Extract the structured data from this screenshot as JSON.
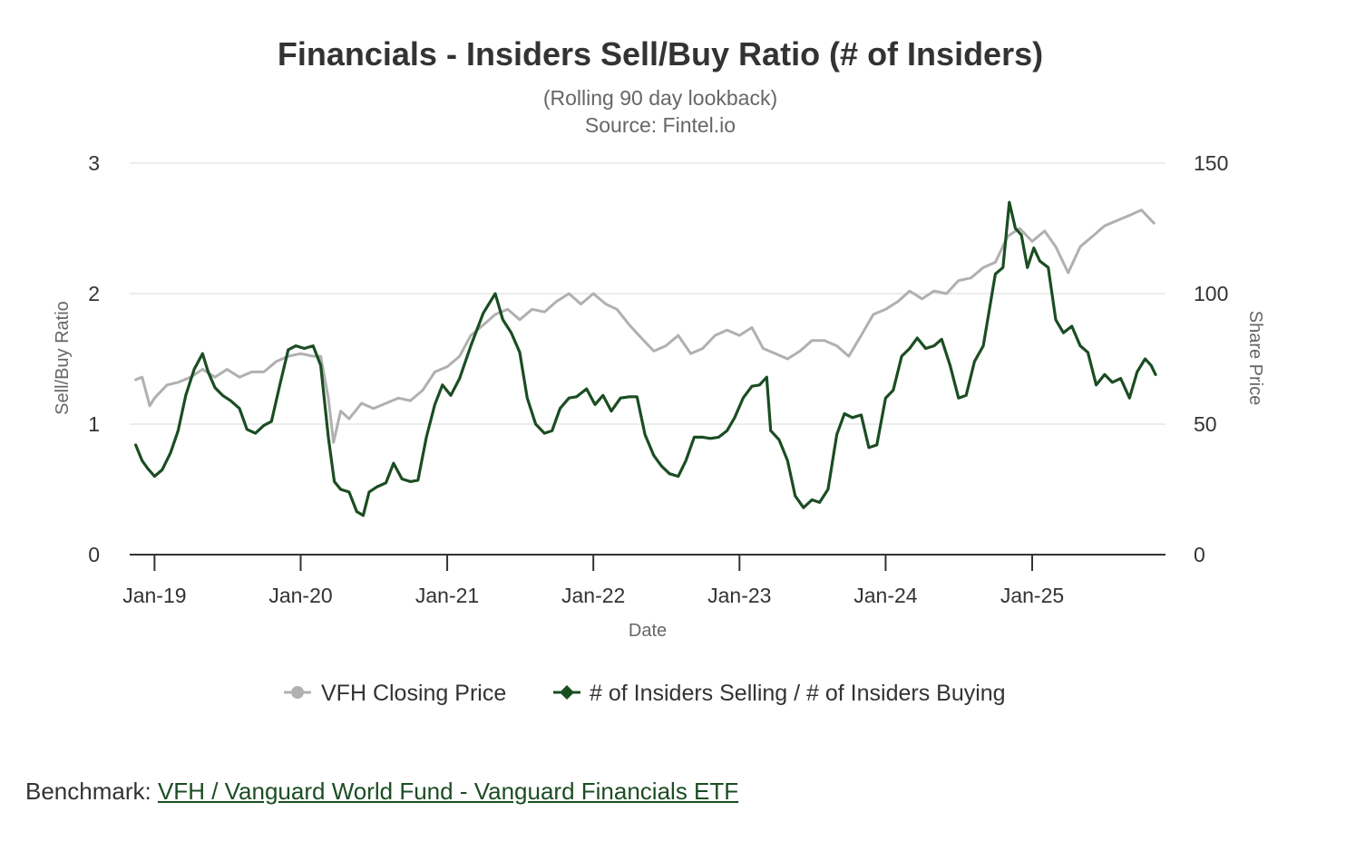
{
  "chart_data": {
    "type": "line",
    "title": "Financials - Insiders Sell/Buy Ratio (# of Insiders)",
    "subtitle": [
      "(Rolling 90 day lookback)",
      "Source: Fintel.io"
    ],
    "xlabel": "Date",
    "ylabel_left": "Sell/Buy Ratio",
    "ylabel_right": "Share Price",
    "x_ticks": [
      "Jan-19",
      "Jan-20",
      "Jan-21",
      "Jan-22",
      "Jan-23",
      "Jan-24",
      "Jan-25"
    ],
    "ylim_left": [
      0,
      3
    ],
    "yticks_left": [
      0,
      1,
      2,
      3
    ],
    "ylim_right": [
      0,
      150
    ],
    "yticks_right": [
      0,
      50,
      100,
      150
    ],
    "grid": true,
    "legend_position": "bottom",
    "series": [
      {
        "name": "VFH Closing Price",
        "axis": "right",
        "color": "#b0b0b0",
        "marker": "circle",
        "points": [
          [
            "2018-11-15",
            67
          ],
          [
            "2018-12-01",
            68
          ],
          [
            "2018-12-20",
            57
          ],
          [
            "2019-01-01",
            60
          ],
          [
            "2019-02-01",
            65
          ],
          [
            "2019-03-01",
            66
          ],
          [
            "2019-04-01",
            68
          ],
          [
            "2019-05-01",
            71
          ],
          [
            "2019-06-01",
            68
          ],
          [
            "2019-07-01",
            71
          ],
          [
            "2019-08-01",
            68
          ],
          [
            "2019-09-01",
            70
          ],
          [
            "2019-10-01",
            70
          ],
          [
            "2019-11-01",
            74
          ],
          [
            "2019-12-01",
            76
          ],
          [
            "2020-01-01",
            77
          ],
          [
            "2020-02-01",
            76
          ],
          [
            "2020-02-20",
            76
          ],
          [
            "2020-03-10",
            60
          ],
          [
            "2020-03-23",
            43
          ],
          [
            "2020-04-10",
            55
          ],
          [
            "2020-05-01",
            52
          ],
          [
            "2020-06-01",
            58
          ],
          [
            "2020-07-01",
            56
          ],
          [
            "2020-08-01",
            58
          ],
          [
            "2020-09-01",
            60
          ],
          [
            "2020-10-01",
            59
          ],
          [
            "2020-11-01",
            63
          ],
          [
            "2020-12-01",
            70
          ],
          [
            "2021-01-01",
            72
          ],
          [
            "2021-02-01",
            76
          ],
          [
            "2021-03-01",
            84
          ],
          [
            "2021-04-01",
            88
          ],
          [
            "2021-05-01",
            92
          ],
          [
            "2021-06-01",
            94
          ],
          [
            "2021-07-01",
            90
          ],
          [
            "2021-08-01",
            94
          ],
          [
            "2021-09-01",
            93
          ],
          [
            "2021-10-01",
            97
          ],
          [
            "2021-11-01",
            100
          ],
          [
            "2021-12-01",
            96
          ],
          [
            "2022-01-01",
            100
          ],
          [
            "2022-02-01",
            96
          ],
          [
            "2022-03-01",
            94
          ],
          [
            "2022-04-01",
            88
          ],
          [
            "2022-05-01",
            83
          ],
          [
            "2022-06-01",
            78
          ],
          [
            "2022-07-01",
            80
          ],
          [
            "2022-08-01",
            84
          ],
          [
            "2022-09-01",
            77
          ],
          [
            "2022-10-01",
            79
          ],
          [
            "2022-11-01",
            84
          ],
          [
            "2022-12-01",
            86
          ],
          [
            "2023-01-01",
            84
          ],
          [
            "2023-02-01",
            87
          ],
          [
            "2023-03-01",
            79
          ],
          [
            "2023-04-01",
            77
          ],
          [
            "2023-05-01",
            75
          ],
          [
            "2023-06-01",
            78
          ],
          [
            "2023-07-01",
            82
          ],
          [
            "2023-08-01",
            82
          ],
          [
            "2023-09-01",
            80
          ],
          [
            "2023-10-01",
            76
          ],
          [
            "2023-11-01",
            84
          ],
          [
            "2023-12-01",
            92
          ],
          [
            "2024-01-01",
            94
          ],
          [
            "2024-02-01",
            97
          ],
          [
            "2024-03-01",
            101
          ],
          [
            "2024-04-01",
            98
          ],
          [
            "2024-05-01",
            101
          ],
          [
            "2024-06-01",
            100
          ],
          [
            "2024-07-01",
            105
          ],
          [
            "2024-08-01",
            106
          ],
          [
            "2024-09-01",
            110
          ],
          [
            "2024-10-01",
            112
          ],
          [
            "2024-11-01",
            122
          ],
          [
            "2024-12-01",
            125
          ],
          [
            "2025-01-01",
            120
          ],
          [
            "2025-02-01",
            124
          ],
          [
            "2025-03-01",
            118
          ],
          [
            "2025-04-01",
            108
          ],
          [
            "2025-05-01",
            118
          ],
          [
            "2025-06-01",
            122
          ],
          [
            "2025-07-01",
            126
          ],
          [
            "2025-08-01",
            128
          ],
          [
            "2025-09-01",
            130
          ],
          [
            "2025-10-01",
            132
          ],
          [
            "2025-11-01",
            127
          ]
        ]
      },
      {
        "name": "# of Insiders Selling / # of Insiders Buying",
        "axis": "left",
        "color": "#1b4d22",
        "marker": "diamond",
        "points": [
          [
            "2018-11-15",
            0.84
          ],
          [
            "2018-12-01",
            0.72
          ],
          [
            "2018-12-15",
            0.66
          ],
          [
            "2019-01-01",
            0.6
          ],
          [
            "2019-01-20",
            0.65
          ],
          [
            "2019-02-10",
            0.78
          ],
          [
            "2019-03-01",
            0.95
          ],
          [
            "2019-03-20",
            1.22
          ],
          [
            "2019-04-10",
            1.42
          ],
          [
            "2019-05-01",
            1.54
          ],
          [
            "2019-05-15",
            1.4
          ],
          [
            "2019-06-01",
            1.28
          ],
          [
            "2019-06-20",
            1.22
          ],
          [
            "2019-07-10",
            1.18
          ],
          [
            "2019-08-01",
            1.12
          ],
          [
            "2019-08-20",
            0.96
          ],
          [
            "2019-09-10",
            0.93
          ],
          [
            "2019-10-01",
            0.99
          ],
          [
            "2019-10-20",
            1.02
          ],
          [
            "2019-11-10",
            1.3
          ],
          [
            "2019-12-01",
            1.57
          ],
          [
            "2019-12-20",
            1.6
          ],
          [
            "2020-01-10",
            1.58
          ],
          [
            "2020-02-01",
            1.6
          ],
          [
            "2020-02-20",
            1.45
          ],
          [
            "2020-03-10",
            0.9
          ],
          [
            "2020-03-25",
            0.56
          ],
          [
            "2020-04-10",
            0.5
          ],
          [
            "2020-05-01",
            0.48
          ],
          [
            "2020-05-20",
            0.33
          ],
          [
            "2020-06-05",
            0.3
          ],
          [
            "2020-06-20",
            0.48
          ],
          [
            "2020-07-10",
            0.52
          ],
          [
            "2020-08-01",
            0.55
          ],
          [
            "2020-08-20",
            0.7
          ],
          [
            "2020-09-10",
            0.58
          ],
          [
            "2020-10-01",
            0.56
          ],
          [
            "2020-10-20",
            0.57
          ],
          [
            "2020-11-10",
            0.9
          ],
          [
            "2020-12-01",
            1.15
          ],
          [
            "2020-12-20",
            1.3
          ],
          [
            "2021-01-10",
            1.22
          ],
          [
            "2021-02-01",
            1.35
          ],
          [
            "2021-03-01",
            1.6
          ],
          [
            "2021-04-01",
            1.85
          ],
          [
            "2021-05-01",
            2.0
          ],
          [
            "2021-05-20",
            1.8
          ],
          [
            "2021-06-10",
            1.7
          ],
          [
            "2021-07-01",
            1.55
          ],
          [
            "2021-07-20",
            1.2
          ],
          [
            "2021-08-10",
            1.0
          ],
          [
            "2021-09-01",
            0.93
          ],
          [
            "2021-09-20",
            0.95
          ],
          [
            "2021-10-10",
            1.12
          ],
          [
            "2021-11-01",
            1.2
          ],
          [
            "2021-11-20",
            1.21
          ],
          [
            "2021-12-15",
            1.27
          ],
          [
            "2022-01-05",
            1.15
          ],
          [
            "2022-01-25",
            1.22
          ],
          [
            "2022-02-15",
            1.1
          ],
          [
            "2022-03-10",
            1.2
          ],
          [
            "2022-04-01",
            1.21
          ],
          [
            "2022-04-20",
            1.21
          ],
          [
            "2022-05-10",
            0.92
          ],
          [
            "2022-06-01",
            0.76
          ],
          [
            "2022-06-20",
            0.68
          ],
          [
            "2022-07-10",
            0.62
          ],
          [
            "2022-08-01",
            0.6
          ],
          [
            "2022-08-20",
            0.72
          ],
          [
            "2022-09-10",
            0.9
          ],
          [
            "2022-10-01",
            0.9
          ],
          [
            "2022-10-20",
            0.89
          ],
          [
            "2022-11-10",
            0.9
          ],
          [
            "2022-12-01",
            0.95
          ],
          [
            "2022-12-20",
            1.05
          ],
          [
            "2023-01-10",
            1.2
          ],
          [
            "2023-02-01",
            1.29
          ],
          [
            "2023-02-20",
            1.3
          ],
          [
            "2023-03-10",
            1.36
          ],
          [
            "2023-03-20",
            0.95
          ],
          [
            "2023-04-10",
            0.88
          ],
          [
            "2023-05-01",
            0.72
          ],
          [
            "2023-05-20",
            0.45
          ],
          [
            "2023-06-10",
            0.36
          ],
          [
            "2023-07-01",
            0.42
          ],
          [
            "2023-07-20",
            0.4
          ],
          [
            "2023-08-10",
            0.5
          ],
          [
            "2023-09-01",
            0.92
          ],
          [
            "2023-09-20",
            1.08
          ],
          [
            "2023-10-10",
            1.05
          ],
          [
            "2023-11-01",
            1.07
          ],
          [
            "2023-11-20",
            0.82
          ],
          [
            "2023-12-10",
            0.84
          ],
          [
            "2024-01-01",
            1.2
          ],
          [
            "2024-01-20",
            1.26
          ],
          [
            "2024-02-10",
            1.52
          ],
          [
            "2024-03-01",
            1.58
          ],
          [
            "2024-03-20",
            1.66
          ],
          [
            "2024-04-10",
            1.58
          ],
          [
            "2024-05-01",
            1.6
          ],
          [
            "2024-05-20",
            1.65
          ],
          [
            "2024-06-10",
            1.45
          ],
          [
            "2024-07-01",
            1.2
          ],
          [
            "2024-07-20",
            1.22
          ],
          [
            "2024-08-10",
            1.48
          ],
          [
            "2024-09-01",
            1.6
          ],
          [
            "2024-10-01",
            2.15
          ],
          [
            "2024-10-20",
            2.2
          ],
          [
            "2024-11-05",
            2.7
          ],
          [
            "2024-11-20",
            2.5
          ],
          [
            "2024-12-05",
            2.45
          ],
          [
            "2024-12-20",
            2.2
          ],
          [
            "2025-01-05",
            2.35
          ],
          [
            "2025-01-20",
            2.25
          ],
          [
            "2025-02-10",
            2.2
          ],
          [
            "2025-03-01",
            1.8
          ],
          [
            "2025-03-20",
            1.7
          ],
          [
            "2025-04-10",
            1.75
          ],
          [
            "2025-05-01",
            1.6
          ],
          [
            "2025-05-20",
            1.55
          ],
          [
            "2025-06-10",
            1.3
          ],
          [
            "2025-07-01",
            1.38
          ],
          [
            "2025-07-20",
            1.32
          ],
          [
            "2025-08-10",
            1.35
          ],
          [
            "2025-09-01",
            1.2
          ],
          [
            "2025-09-20",
            1.4
          ],
          [
            "2025-10-10",
            1.5
          ],
          [
            "2025-10-25",
            1.45
          ],
          [
            "2025-11-05",
            1.38
          ]
        ]
      }
    ]
  },
  "footer": {
    "benchmark_label": "Benchmark:",
    "benchmark_link": "VFH / Vanguard World Fund - Vanguard Financials ETF"
  }
}
